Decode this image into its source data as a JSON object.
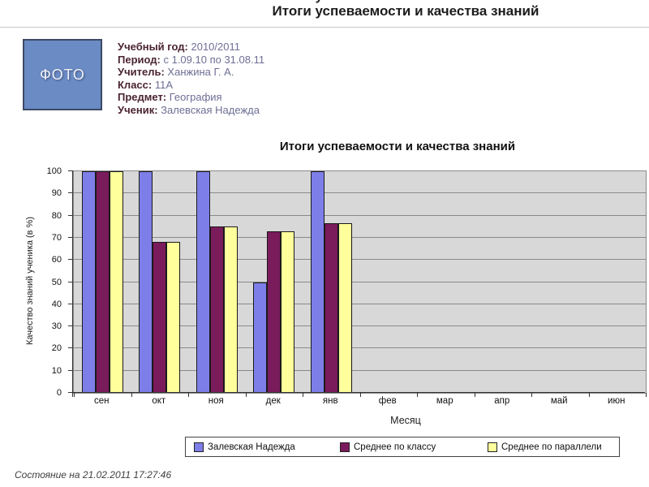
{
  "page": {
    "title": "Итоги успеваемости и качества знаний",
    "status_line": "Состояние на 21.02.2011 17:27:46"
  },
  "student_card": {
    "photo_label": "ФОТО",
    "fields": [
      {
        "label": "Учебный год:",
        "value": "2010/2011"
      },
      {
        "label": "Период:",
        "value": "с 1.09.10 по 31.08.11"
      },
      {
        "label": "Учитель:",
        "value": "Ханжина Г. А."
      },
      {
        "label": "Класс:",
        "value": "11А"
      },
      {
        "label": "Предмет:",
        "value": "География"
      },
      {
        "label": "Ученик:",
        "value": "Залевская Надежда"
      }
    ]
  },
  "chart_data": {
    "type": "bar",
    "title": "Итоги успеваемости и качества знаний",
    "xlabel": "Месяц",
    "ylabel": "Качество знаний ученика (в %)",
    "ylim": [
      0,
      100
    ],
    "ytick_step": 10,
    "grid": "horizontal",
    "legend_position": "bottom",
    "categories": [
      "сен",
      "окт",
      "ноя",
      "дек",
      "янв",
      "фев",
      "мар",
      "апр",
      "май",
      "июн"
    ],
    "series": [
      {
        "name": "Залевская Надежда",
        "color": "#7e7ee8",
        "values": [
          100,
          100,
          100,
          50,
          100,
          null,
          null,
          null,
          null,
          null
        ]
      },
      {
        "name": "Среднее по классу",
        "color": "#7a1b5b",
        "values": [
          100,
          68,
          75,
          73,
          76.5,
          null,
          null,
          null,
          null,
          null
        ]
      },
      {
        "name": "Среднее по параллели",
        "color": "#ffff9c",
        "values": [
          100,
          68,
          75,
          73,
          76.5,
          null,
          null,
          null,
          null,
          null
        ]
      }
    ],
    "colors": {
      "plot_bg": "#d8d8d8",
      "gridline": "#8a8a8a",
      "axis": "#333333"
    }
  }
}
